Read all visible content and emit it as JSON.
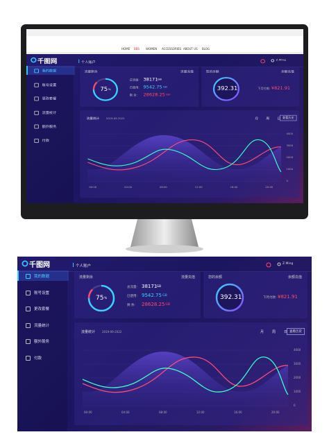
{
  "logo": "千图网",
  "browser_nav": [
    "HOME",
    "BBS",
    "WOMEN",
    "ACCESSORIES",
    "ABOUT US",
    "BLOG"
  ],
  "user": "Z.Ming",
  "sidebar": [
    "我的数据",
    "账号设置",
    "更改套餐",
    "流量统计",
    "额外服务",
    "付款"
  ],
  "page_title": "个人账户",
  "traffic_card": {
    "title": "流量剩余",
    "action": "流量充值",
    "percent": 75,
    "percent_unit": "%",
    "rows": [
      {
        "label": "总流量:",
        "value": "38171",
        "unit": "GB"
      },
      {
        "label": "已使用:",
        "value": "9542.75",
        "unit": "GB"
      },
      {
        "label": "剩 余:",
        "value": "28628.25",
        "unit": "GB"
      }
    ]
  },
  "balance_card": {
    "title": "您的余额",
    "action": "余额充值",
    "balance": "392.31",
    "next_label": "下月付款:",
    "next_value": "¥821.91"
  },
  "chart": {
    "title": "流量统计",
    "date": "2019-09-2022",
    "periods": [
      "月",
      "周",
      "日"
    ],
    "history": "查看历史",
    "yticks": [
      "4000",
      "3000",
      "2000",
      "1000",
      "0"
    ],
    "xticks": [
      "00:00",
      "04:00",
      "08:00",
      "12:00",
      "16:00",
      "20:00"
    ]
  }
}
